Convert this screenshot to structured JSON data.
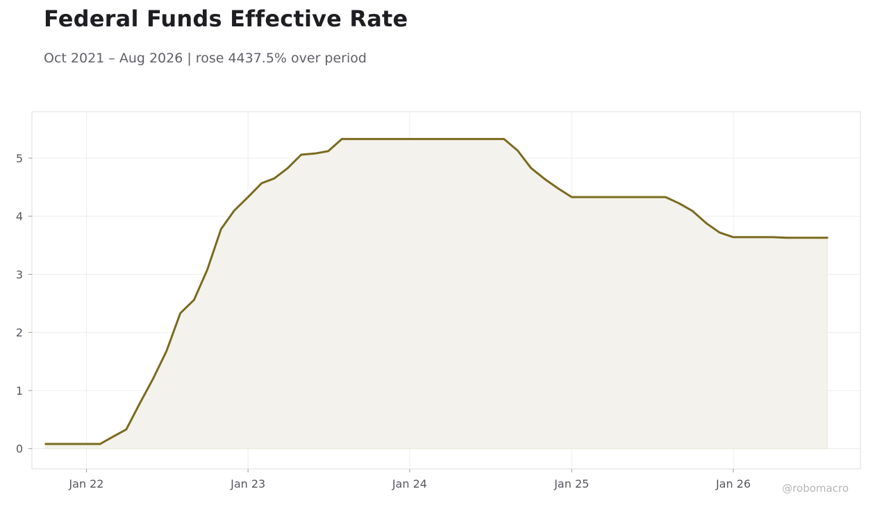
{
  "header": {
    "title": "Federal Funds Effective Rate",
    "subtitle": "Oct 2021 – Aug 2026 | rose 4437.5% over period"
  },
  "credit": "@robomacro",
  "colors": {
    "line": "#7a6a1e",
    "fill": "#f3f2ec",
    "grid": "#ececec",
    "frame": "#dcdcdc"
  },
  "chart_data": {
    "type": "area",
    "xlabel": "",
    "ylabel": "",
    "ylim": [
      -0.35,
      5.8
    ],
    "xlim": [
      "2021-08-31",
      "2026-10-15"
    ],
    "yticks": [
      0,
      1,
      2,
      3,
      4,
      5
    ],
    "xticks": [
      {
        "date": "2022-01-01",
        "label": "Jan 22"
      },
      {
        "date": "2023-01-01",
        "label": "Jan 23"
      },
      {
        "date": "2024-01-01",
        "label": "Jan 24"
      },
      {
        "date": "2025-01-01",
        "label": "Jan 25"
      },
      {
        "date": "2026-01-01",
        "label": "Jan 26"
      }
    ],
    "grid": true,
    "series": [
      {
        "points": [
          [
            "2021-10-01",
            0.08
          ],
          [
            "2021-11-01",
            0.08
          ],
          [
            "2021-12-01",
            0.08
          ],
          [
            "2022-01-01",
            0.08
          ],
          [
            "2022-02-01",
            0.08
          ],
          [
            "2022-03-01",
            0.2
          ],
          [
            "2022-04-01",
            0.33
          ],
          [
            "2022-05-01",
            0.77
          ],
          [
            "2022-06-01",
            1.21
          ],
          [
            "2022-07-01",
            1.68
          ],
          [
            "2022-08-01",
            2.33
          ],
          [
            "2022-09-01",
            2.56
          ],
          [
            "2022-10-01",
            3.08
          ],
          [
            "2022-11-01",
            3.78
          ],
          [
            "2022-12-01",
            4.1
          ],
          [
            "2023-01-01",
            4.33
          ],
          [
            "2023-02-01",
            4.57
          ],
          [
            "2023-03-01",
            4.65
          ],
          [
            "2023-04-01",
            4.83
          ],
          [
            "2023-05-01",
            5.06
          ],
          [
            "2023-06-01",
            5.08
          ],
          [
            "2023-07-01",
            5.12
          ],
          [
            "2023-08-01",
            5.33
          ],
          [
            "2023-09-01",
            5.33
          ],
          [
            "2023-10-01",
            5.33
          ],
          [
            "2023-11-01",
            5.33
          ],
          [
            "2023-12-01",
            5.33
          ],
          [
            "2024-01-01",
            5.33
          ],
          [
            "2024-02-01",
            5.33
          ],
          [
            "2024-03-01",
            5.33
          ],
          [
            "2024-04-01",
            5.33
          ],
          [
            "2024-05-01",
            5.33
          ],
          [
            "2024-06-01",
            5.33
          ],
          [
            "2024-07-01",
            5.33
          ],
          [
            "2024-08-01",
            5.33
          ],
          [
            "2024-09-01",
            5.13
          ],
          [
            "2024-10-01",
            4.83
          ],
          [
            "2024-11-01",
            4.64
          ],
          [
            "2024-12-01",
            4.48
          ],
          [
            "2025-01-01",
            4.33
          ],
          [
            "2025-02-01",
            4.33
          ],
          [
            "2025-03-01",
            4.33
          ],
          [
            "2025-04-01",
            4.33
          ],
          [
            "2025-05-01",
            4.33
          ],
          [
            "2025-06-01",
            4.33
          ],
          [
            "2025-07-01",
            4.33
          ],
          [
            "2025-08-01",
            4.33
          ],
          [
            "2025-09-01",
            4.22
          ],
          [
            "2025-10-01",
            4.09
          ],
          [
            "2025-11-01",
            3.88
          ],
          [
            "2025-12-01",
            3.72
          ],
          [
            "2026-01-01",
            3.64
          ],
          [
            "2026-02-01",
            3.64
          ],
          [
            "2026-03-01",
            3.64
          ],
          [
            "2026-04-01",
            3.64
          ],
          [
            "2026-05-01",
            3.63
          ],
          [
            "2026-06-01",
            3.63
          ],
          [
            "2026-07-01",
            3.63
          ],
          [
            "2026-08-01",
            3.63
          ]
        ]
      }
    ]
  }
}
